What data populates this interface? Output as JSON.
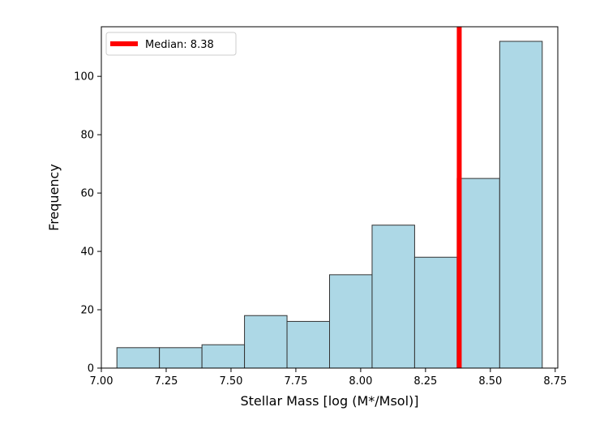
{
  "chart_data": {
    "type": "bar",
    "subtype": "histogram",
    "title": "",
    "xlabel": "Stellar Mass [log (M*/Msol)]",
    "ylabel": "Frequency",
    "xlim": [
      7.0,
      8.76
    ],
    "ylim": [
      0,
      117
    ],
    "xticks": [
      "7.00",
      "7.25",
      "7.50",
      "7.75",
      "8.00",
      "8.25",
      "8.50",
      "8.75"
    ],
    "yticks": [
      "0",
      "20",
      "40",
      "60",
      "80",
      "100"
    ],
    "bin_edges": [
      7.06,
      7.224,
      7.388,
      7.552,
      7.716,
      7.88,
      8.044,
      8.208,
      8.372,
      8.536,
      8.7
    ],
    "values": [
      7,
      7,
      8,
      18,
      16,
      32,
      49,
      38,
      65,
      112
    ],
    "bar_color": "#add8e6",
    "bar_edge_color": "#333333",
    "median": {
      "value": 8.38,
      "label": "Median: 8.38",
      "color": "#ff0000"
    },
    "legend_position": "upper-left",
    "grid": false
  }
}
